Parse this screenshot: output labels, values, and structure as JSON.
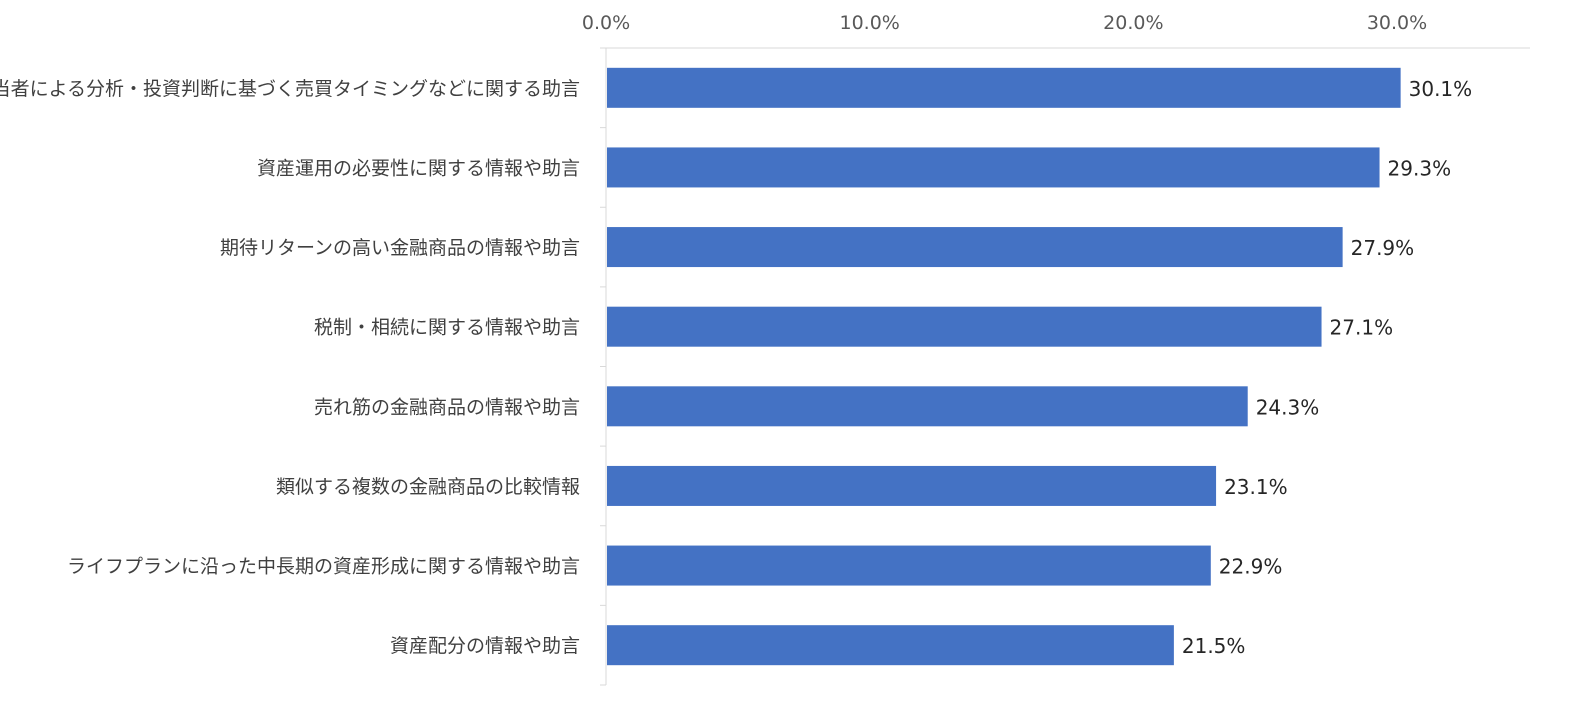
{
  "chart_data": {
    "type": "bar",
    "orientation": "horizontal",
    "title": "",
    "xlabel": "",
    "ylabel": "",
    "xlim": [
      0,
      35
    ],
    "x_ticks": [
      "0.0%",
      "10.0%",
      "20.0%",
      "30.0%"
    ],
    "x_tick_values": [
      0,
      10,
      20,
      30
    ],
    "grid": false,
    "legend": "none",
    "bar_color": "#4472C4",
    "categories": [
      "担当者による分析・投資判断に基づく売買タイミングなどに関する助言",
      "資産運用の必要性に関する情報や助言",
      "期待リターンの高い金融商品の情報や助言",
      "税制・相続に関する情報や助言",
      "売れ筋の金融商品の情報や助言",
      "類似する複数の金融商品の比較情報",
      "ライフプランに沿った中長期の資産形成に関する情報や助言",
      "資産配分の情報や助言"
    ],
    "values": [
      30.1,
      29.3,
      27.9,
      27.1,
      24.3,
      23.1,
      22.9,
      21.5
    ],
    "data_labels": [
      "30.1%",
      "29.3%",
      "27.9%",
      "27.1%",
      "24.3%",
      "23.1%",
      "22.9%",
      "21.5%"
    ]
  }
}
